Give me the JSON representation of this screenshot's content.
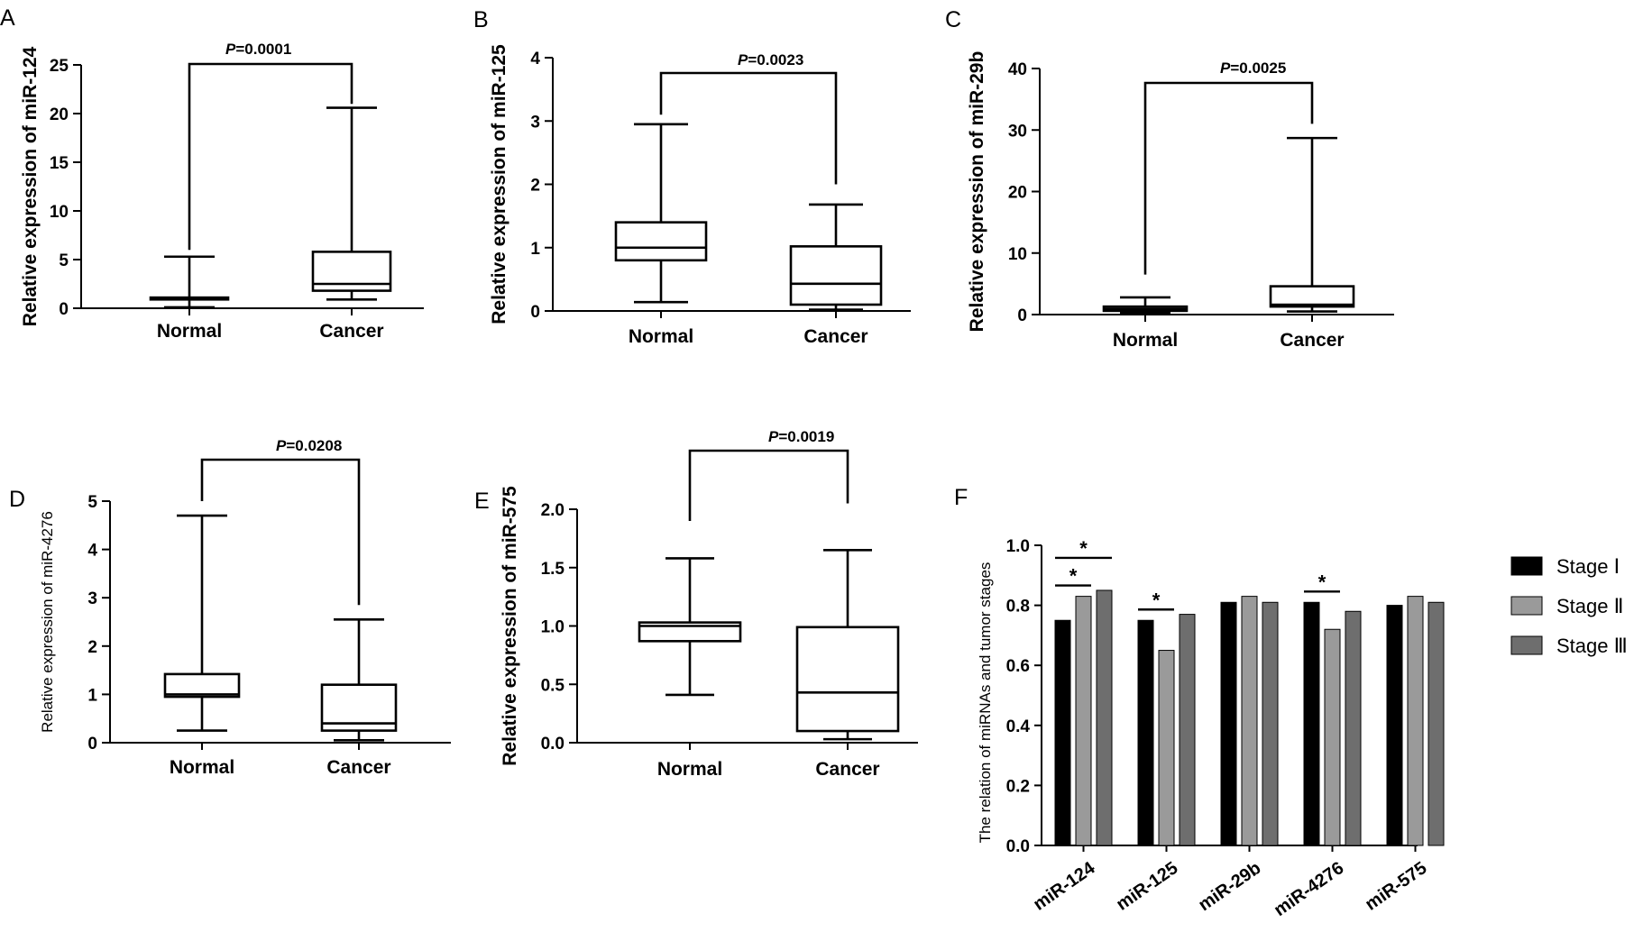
{
  "chart_data": [
    {
      "panel": "A",
      "type": "boxplot",
      "ylabel": "Relative  expression of miR-124",
      "ylim": [
        0,
        25
      ],
      "yticks": [
        0,
        5,
        10,
        15,
        20,
        25
      ],
      "categories": [
        "Normal",
        "Cancer"
      ],
      "boxes": [
        {
          "name": "Normal",
          "min": 0.1,
          "q1": 0.9,
          "median": 1.0,
          "q3": 1.1,
          "max": 5.3
        },
        {
          "name": "Cancer",
          "min": 0.9,
          "q1": 1.8,
          "median": 2.5,
          "q3": 5.8,
          "max": 20.6
        }
      ],
      "p_label": "P",
      "p_value": "=0.0001",
      "bracket_starts": [
        6,
        21
      ]
    },
    {
      "panel": "B",
      "type": "boxplot",
      "ylabel": "Relative expression of miR-125",
      "ylim": [
        0,
        4
      ],
      "yticks": [
        0,
        1,
        2,
        3,
        4
      ],
      "categories": [
        "Normal",
        "Cancer"
      ],
      "boxes": [
        {
          "name": "Normal",
          "min": 0.14,
          "q1": 0.8,
          "median": 1.0,
          "q3": 1.4,
          "max": 2.95
        },
        {
          "name": "Cancer",
          "min": 0.02,
          "q1": 0.1,
          "median": 0.43,
          "q3": 1.02,
          "max": 1.68
        }
      ],
      "p_label": "P",
      "p_value": "=0.0023",
      "bracket_starts": [
        3.1,
        2.0
      ]
    },
    {
      "panel": "C",
      "type": "boxplot",
      "ylabel": "Relative expression of miR-29b",
      "ylim": [
        0,
        40
      ],
      "yticks": [
        0,
        10,
        20,
        30,
        40
      ],
      "categories": [
        "Normal",
        "Cancer"
      ],
      "boxes": [
        {
          "name": "Normal",
          "min": 0.3,
          "q1": 0.6,
          "median": 0.9,
          "q3": 1.3,
          "max": 2.8
        },
        {
          "name": "Cancer",
          "min": 0.5,
          "q1": 1.3,
          "median": 1.6,
          "q3": 4.6,
          "max": 28.7
        }
      ],
      "p_label": "P",
      "p_value": "=0.0025",
      "bracket_starts": [
        6.5,
        31
      ]
    },
    {
      "panel": "D",
      "type": "boxplot",
      "ylabel": "Relative expression of miR-4276",
      "ylim": [
        0,
        5
      ],
      "yticks": [
        0,
        1,
        2,
        3,
        4,
        5
      ],
      "categories": [
        "Normal",
        "Cancer"
      ],
      "boxes": [
        {
          "name": "Normal",
          "min": 0.25,
          "q1": 0.95,
          "median": 1.0,
          "q3": 1.42,
          "max": 4.7
        },
        {
          "name": "Cancer",
          "min": 0.05,
          "q1": 0.25,
          "median": 0.4,
          "q3": 1.2,
          "max": 2.55
        }
      ],
      "p_label": "P",
      "p_value": "=0.0208",
      "bracket_starts": [
        5.0,
        2.85
      ]
    },
    {
      "panel": "E",
      "type": "boxplot",
      "ylabel": "Relative  expression of miR-575",
      "ylim": [
        0,
        2.0
      ],
      "yticks": [
        "0.0",
        "0.5",
        "1.0",
        "1.5",
        "2.0"
      ],
      "categories": [
        "Normal",
        "Cancer"
      ],
      "boxes": [
        {
          "name": "Normal",
          "min": 0.41,
          "q1": 0.87,
          "median": 1.0,
          "q3": 1.03,
          "max": 1.58
        },
        {
          "name": "Cancer",
          "min": 0.03,
          "q1": 0.1,
          "median": 0.43,
          "q3": 0.99,
          "max": 1.65
        }
      ],
      "p_label": "P",
      "p_value": "=0.0019",
      "bracket_starts": [
        1.9,
        2.05
      ]
    },
    {
      "panel": "F",
      "type": "bar",
      "ylabel": "The relation of miRNAs and tumor stages",
      "ylim": [
        0,
        1.0
      ],
      "yticks": [
        "0.0",
        "0.2",
        "0.4",
        "0.6",
        "0.8",
        "1.0"
      ],
      "categories": [
        "miR-124",
        "miR-125",
        "miR-29b",
        "miR-4276",
        "miR-575"
      ],
      "series": [
        {
          "name": "Stage Ⅰ",
          "color": "#000000",
          "values": [
            0.75,
            0.75,
            0.81,
            0.81,
            0.8
          ]
        },
        {
          "name": "Stage Ⅱ",
          "color": "#9a9a9a",
          "values": [
            0.83,
            0.65,
            0.83,
            0.72,
            0.83
          ]
        },
        {
          "name": "Stage Ⅲ",
          "color": "#6e6e6e",
          "values": [
            0.85,
            0.77,
            0.81,
            0.78,
            0.81
          ]
        }
      ],
      "significance": [
        {
          "group": 0,
          "from_series": 0,
          "to_series": 1,
          "mark": "*"
        },
        {
          "group": 0,
          "from_series": 0,
          "to_series": 2,
          "mark": "*"
        },
        {
          "group": 1,
          "from_series": 0,
          "to_series": 1,
          "mark": "*"
        },
        {
          "group": 3,
          "from_series": 0,
          "to_series": 1,
          "mark": "*"
        }
      ]
    }
  ]
}
